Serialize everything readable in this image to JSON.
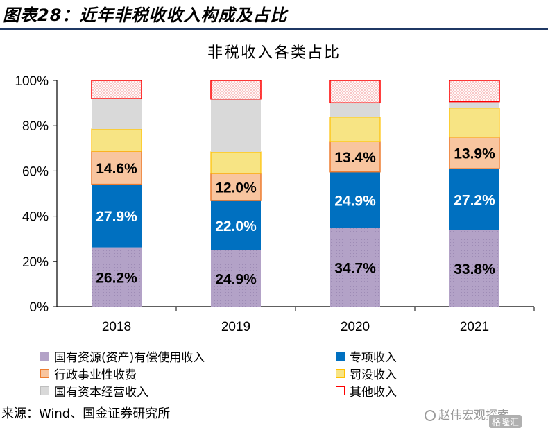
{
  "figure_title": "图表28：近年非税收收入构成及占比",
  "source_note": "来源：Wind、国金证券研究所",
  "watermark": {
    "text": "赵伟宏观探索",
    "badge": "格隆汇",
    "icon": "wechat-icon"
  },
  "colors": {
    "state_owned_paid_use": "#b3a2c7",
    "special_revenue": "#0070c0",
    "admin_fees": "#f8c59f",
    "fines": "#f7e484",
    "state_capital_operation": "#d9d9d9",
    "other": "#ffffff",
    "other_border": "#ff0000"
  },
  "chart_data": {
    "type": "bar",
    "stacked": true,
    "title": "非税收入各类占比",
    "categories": [
      "2018",
      "2019",
      "2020",
      "2021"
    ],
    "ylim": [
      0,
      100
    ],
    "y_ticks": [
      "0%",
      "20%",
      "40%",
      "60%",
      "80%",
      "100%"
    ],
    "legend_position": "bottom",
    "grid": false,
    "series": [
      {
        "name": "国有资源(资产)有偿使用收入",
        "color_key": "state_owned_paid_use",
        "values": [
          26.2,
          24.9,
          34.7,
          33.8
        ],
        "labels": [
          "26.2%",
          "24.9%",
          "34.7%",
          "33.8%"
        ],
        "label_color": "#000000"
      },
      {
        "name": "专项收入",
        "color_key": "special_revenue",
        "values": [
          27.9,
          22.0,
          24.9,
          27.2
        ],
        "labels": [
          "27.9%",
          "22.0%",
          "24.9%",
          "27.2%"
        ],
        "label_color": "#ffffff"
      },
      {
        "name": "行政事业性收费",
        "color_key": "admin_fees",
        "values": [
          14.6,
          12.0,
          13.4,
          13.9
        ],
        "labels": [
          "14.6%",
          "12.0%",
          "13.4%",
          "13.9%"
        ],
        "label_color": "#000000"
      },
      {
        "name": "罚没收入",
        "color_key": "fines",
        "values": [
          9.8,
          9.5,
          10.8,
          12.9
        ],
        "labels": [],
        "label_color": "#000000"
      },
      {
        "name": "国有资本经营收入",
        "color_key": "state_capital_operation",
        "values": [
          13.5,
          23.4,
          6.3,
          2.8
        ],
        "labels": [],
        "label_color": "#000000"
      },
      {
        "name": "其他收入",
        "color_key": "other",
        "values": [
          8.0,
          8.2,
          9.9,
          9.4
        ],
        "labels": [],
        "label_color": "#000000"
      }
    ]
  }
}
